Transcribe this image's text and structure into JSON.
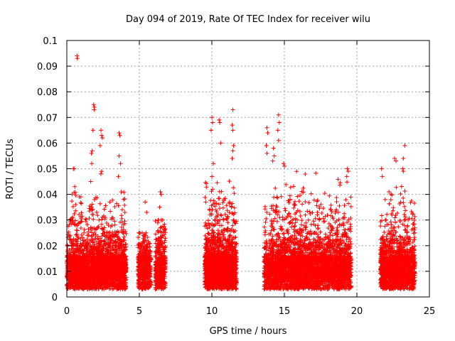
{
  "chart_data": {
    "type": "scatter",
    "title": "Day 094 of 2019, Rate Of TEC Index for receiver wilu",
    "xlabel": "GPS time / hours",
    "ylabel": "ROTI / TECUs",
    "xlim": [
      0,
      25
    ],
    "ylim": [
      0,
      0.1
    ],
    "xticks": [
      0,
      5,
      10,
      15,
      20,
      25
    ],
    "xtick_labels": [
      "0",
      "5",
      "10",
      "15",
      "20",
      "25"
    ],
    "yticks": [
      0,
      0.01,
      0.02,
      0.03,
      0.04,
      0.05,
      0.06,
      0.07,
      0.08,
      0.09,
      0.1
    ],
    "ytick_labels": [
      "0",
      "0.01",
      "0.02",
      "0.03",
      "0.04",
      "0.05",
      "0.06",
      "0.07",
      "0.08",
      "0.09",
      "0.1"
    ],
    "grid": true,
    "marker": "+",
    "color": "#ff0000",
    "series": [
      {
        "name": "ROTI",
        "clusters": [
          {
            "x_range": [
              0.0,
              4.1
            ],
            "n": 2600,
            "max": 0.045
          },
          {
            "x_range": [
              4.9,
              5.8
            ],
            "n": 500,
            "max": 0.025
          },
          {
            "x_range": [
              6.1,
              6.8
            ],
            "n": 450,
            "max": 0.03
          },
          {
            "x_range": [
              9.5,
              11.7
            ],
            "n": 1900,
            "max": 0.05
          },
          {
            "x_range": [
              13.6,
              19.6
            ],
            "n": 3600,
            "max": 0.05
          },
          {
            "x_range": [
              21.6,
              24.0
            ],
            "n": 1500,
            "max": 0.045
          }
        ],
        "outliers": [
          [
            0.7,
            0.094
          ],
          [
            0.72,
            0.093
          ],
          [
            0.45,
            0.05
          ],
          [
            0.5,
            0.05
          ],
          [
            0.55,
            0.043
          ],
          [
            0.6,
            0.036
          ],
          [
            1.85,
            0.075
          ],
          [
            1.9,
            0.074
          ],
          [
            1.88,
            0.073
          ],
          [
            1.8,
            0.065
          ],
          [
            1.75,
            0.057
          ],
          [
            1.7,
            0.056
          ],
          [
            1.72,
            0.052
          ],
          [
            1.65,
            0.045
          ],
          [
            2.35,
            0.065
          ],
          [
            2.4,
            0.063
          ],
          [
            2.45,
            0.062
          ],
          [
            2.3,
            0.059
          ],
          [
            2.4,
            0.049
          ],
          [
            2.35,
            0.048
          ],
          [
            3.6,
            0.064
          ],
          [
            3.65,
            0.063
          ],
          [
            3.6,
            0.055
          ],
          [
            3.7,
            0.052
          ],
          [
            3.55,
            0.047
          ],
          [
            5.4,
            0.037
          ],
          [
            5.5,
            0.033
          ],
          [
            6.45,
            0.041
          ],
          [
            6.5,
            0.04
          ],
          [
            6.4,
            0.035
          ],
          [
            6.5,
            0.03
          ],
          [
            10.0,
            0.07
          ],
          [
            10.05,
            0.068
          ],
          [
            9.95,
            0.065
          ],
          [
            10.5,
            0.069
          ],
          [
            10.55,
            0.068
          ],
          [
            10.6,
            0.06
          ],
          [
            10.1,
            0.052
          ],
          [
            10.0,
            0.047
          ],
          [
            11.45,
            0.073
          ],
          [
            11.4,
            0.067
          ],
          [
            11.45,
            0.065
          ],
          [
            11.5,
            0.059
          ],
          [
            11.45,
            0.057
          ],
          [
            11.4,
            0.054
          ],
          [
            13.8,
            0.066
          ],
          [
            13.85,
            0.064
          ],
          [
            13.75,
            0.059
          ],
          [
            13.8,
            0.056
          ],
          [
            14.6,
            0.071
          ],
          [
            14.65,
            0.068
          ],
          [
            14.55,
            0.065
          ],
          [
            14.6,
            0.061
          ],
          [
            14.25,
            0.058
          ],
          [
            14.3,
            0.055
          ],
          [
            14.2,
            0.053
          ],
          [
            14.95,
            0.052
          ],
          [
            15.0,
            0.051
          ],
          [
            19.35,
            0.05
          ],
          [
            19.4,
            0.049
          ],
          [
            19.3,
            0.047
          ],
          [
            21.7,
            0.05
          ],
          [
            21.75,
            0.047
          ],
          [
            22.6,
            0.054
          ],
          [
            22.7,
            0.053
          ],
          [
            23.3,
            0.059
          ],
          [
            23.2,
            0.054
          ],
          [
            23.15,
            0.05
          ],
          [
            23.2,
            0.049
          ]
        ]
      }
    ]
  }
}
